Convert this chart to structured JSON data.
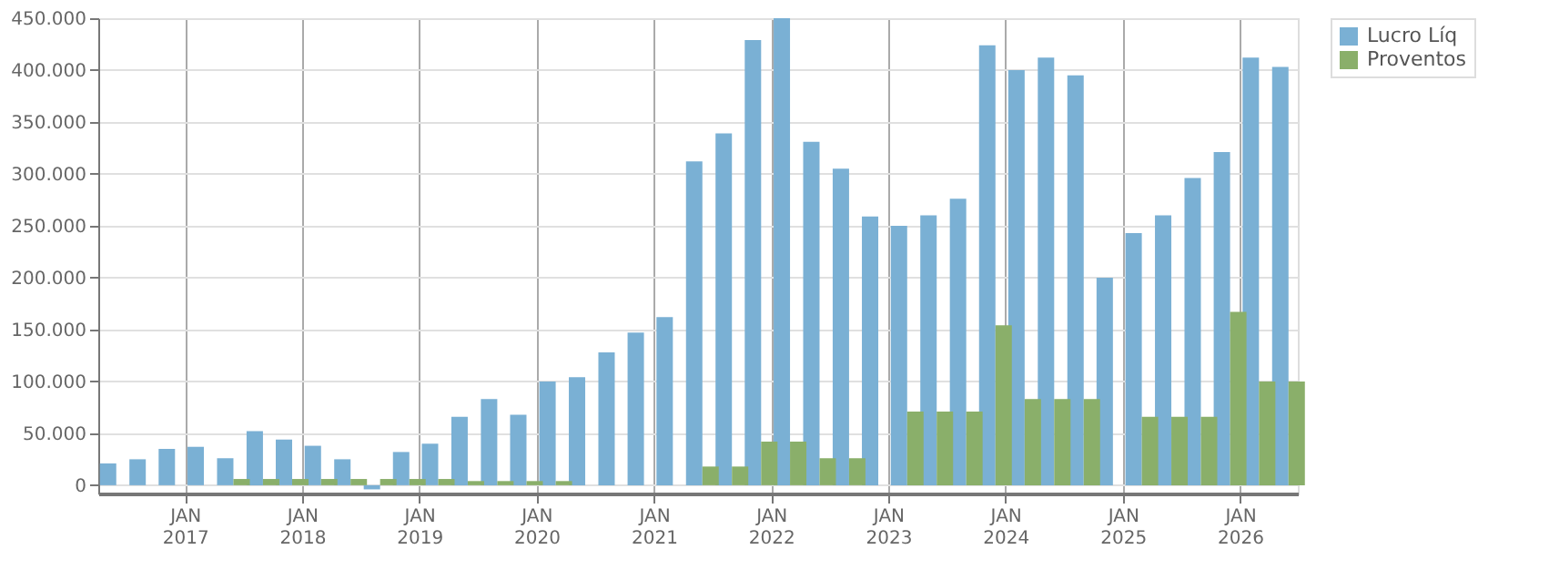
{
  "chart_data": {
    "type": "bar",
    "x": [
      "2016-06",
      "2016-09",
      "2016-12",
      "2017-03",
      "2017-06",
      "2017-09",
      "2017-12",
      "2018-03",
      "2018-06",
      "2018-09",
      "2018-12",
      "2019-03",
      "2019-06",
      "2019-09",
      "2019-12",
      "2020-03",
      "2020-06",
      "2020-09",
      "2020-12",
      "2021-03",
      "2021-06",
      "2021-09",
      "2021-12",
      "2022-03",
      "2022-06",
      "2022-09",
      "2022-12",
      "2023-03",
      "2023-06",
      "2023-09",
      "2023-12",
      "2024-03",
      "2024-06",
      "2024-09",
      "2024-12",
      "2025-03",
      "2025-06",
      "2025-09",
      "2025-12",
      "2026-03",
      "2026-06"
    ],
    "series": [
      {
        "name": "Lucro Líq",
        "color": "#7ab0d4",
        "values": [
          21000,
          25000,
          35000,
          37000,
          26000,
          52000,
          44000,
          38000,
          25000,
          -4000,
          32000,
          40000,
          66000,
          83000,
          68000,
          100000,
          104000,
          128000,
          147000,
          162000,
          312000,
          339000,
          429000,
          450000,
          331000,
          305000,
          259000,
          250000,
          260000,
          276000,
          424000,
          400000,
          412000,
          395000,
          200000,
          243000,
          260000,
          296000,
          321000,
          412000,
          403000
        ]
      },
      {
        "name": "Proventos",
        "color": "#8aaf6a",
        "values": [
          0,
          0,
          0,
          0,
          6000,
          6000,
          6000,
          6000,
          6000,
          6000,
          6000,
          6000,
          4000,
          4000,
          4000,
          4000,
          0,
          0,
          0,
          0,
          18000,
          18000,
          42000,
          42000,
          26000,
          26000,
          0,
          71000,
          71000,
          71000,
          154000,
          83000,
          83000,
          83000,
          0,
          66000,
          66000,
          66000,
          167000,
          100000,
          100000
        ]
      }
    ],
    "xlim": [
      "2016-04-06",
      "2026-06-30"
    ],
    "xticks": [
      {
        "value": "2017-01-01",
        "label": "JAN 2017"
      },
      {
        "value": "2018-01-01",
        "label": "JAN 2018"
      },
      {
        "value": "2019-01-01",
        "label": "JAN 2019"
      },
      {
        "value": "2020-01-01",
        "label": "JAN 2020"
      },
      {
        "value": "2021-01-01",
        "label": "JAN 2021"
      },
      {
        "value": "2022-01-01",
        "label": "JAN 2022"
      },
      {
        "value": "2023-01-01",
        "label": "JAN 2023"
      },
      {
        "value": "2024-01-01",
        "label": "JAN 2024"
      },
      {
        "value": "2025-01-01",
        "label": "JAN 2025"
      },
      {
        "value": "2026-01-01",
        "label": "JAN 2026"
      }
    ],
    "ylim": [
      -8000,
      450000
    ],
    "yticks": [
      {
        "value": 0,
        "label": "0"
      },
      {
        "value": 50000,
        "label": "50.000"
      },
      {
        "value": 100000,
        "label": "100.000"
      },
      {
        "value": 150000,
        "label": "150.000"
      },
      {
        "value": 200000,
        "label": "200.000"
      },
      {
        "value": 250000,
        "label": "250.000"
      },
      {
        "value": 300000,
        "label": "300.000"
      },
      {
        "value": 350000,
        "label": "350.000"
      },
      {
        "value": 400000,
        "label": "400.000"
      },
      {
        "value": 450000,
        "label": "450.000"
      }
    ],
    "grid": true,
    "legend": "top right"
  }
}
